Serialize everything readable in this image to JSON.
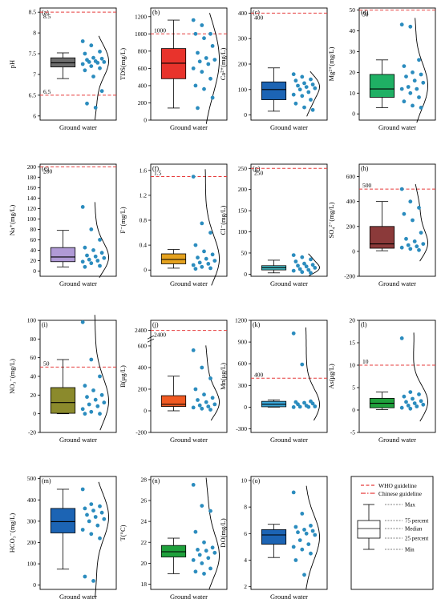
{
  "legend": {
    "who": "WHO guideline",
    "chinese": "Chinese guideline",
    "max": "Max",
    "p75": "75 percent",
    "median": "Median",
    "p25": "25 percent",
    "min": "Min"
  },
  "chart_data": [
    {
      "type": "box",
      "panel": "(a)",
      "ylabel": "pH",
      "xlabel": "Ground water",
      "color": "#6d6d6d",
      "ylim": [
        5.9,
        8.6
      ],
      "yticks": [
        6.0,
        6.5,
        7.0,
        7.5,
        8.0,
        8.5
      ],
      "box": {
        "min": 6.9,
        "q1": 7.18,
        "median": 7.28,
        "q3": 7.4,
        "max": 7.52
      },
      "guidelines": [
        {
          "value": 8.5,
          "label": "8.5",
          "label_pos": "below"
        },
        {
          "value": 6.5,
          "label": "6.5",
          "label_pos": "above"
        }
      ],
      "points": [
        7.8,
        7.7,
        7.55,
        7.5,
        7.4,
        7.38,
        7.35,
        7.32,
        7.3,
        7.3,
        7.28,
        7.25,
        7.2,
        7.15,
        7.1,
        6.95,
        6.6,
        6.3,
        6.2
      ]
    },
    {
      "type": "box",
      "panel": "(b)",
      "ylabel": "TDS(mg/L)",
      "xlabel": "Ground water",
      "color": "#e8332c",
      "ylim": [
        0,
        1300
      ],
      "yticks": [
        0,
        200,
        400,
        600,
        800,
        1000,
        1200
      ],
      "box": {
        "min": 140,
        "q1": 480,
        "median": 660,
        "q3": 830,
        "max": 1160
      },
      "guidelines": [
        {
          "value": 1000,
          "label": "1000",
          "label_pos": "above"
        }
      ],
      "points": [
        1160,
        1100,
        1000,
        1000,
        950,
        860,
        780,
        720,
        700,
        680,
        650,
        600,
        560,
        480,
        400,
        360,
        260,
        140
      ]
    },
    {
      "type": "box",
      "panel": "(c)",
      "ylabel": "Ca²⁺(mg/L)",
      "xlabel": "Ground water",
      "color": "#1c64b4",
      "ylim": [
        -20,
        420
      ],
      "yticks": [
        0,
        100,
        200,
        300,
        400
      ],
      "box": {
        "min": 15,
        "q1": 60,
        "median": 100,
        "q3": 130,
        "max": 185
      },
      "guidelines": [
        {
          "value": 400,
          "label": "400",
          "label_pos": "below"
        }
      ],
      "points": [
        160,
        150,
        140,
        135,
        125,
        120,
        115,
        110,
        105,
        100,
        90,
        80,
        75,
        60,
        45,
        30,
        20
      ]
    },
    {
      "type": "box",
      "panel": "(d)",
      "ylabel": "Mg²⁺(mg/L)",
      "xlabel": "Ground water",
      "color": "#1fb064",
      "ylim": [
        -3,
        51
      ],
      "yticks": [
        0,
        10,
        20,
        30,
        40,
        50
      ],
      "box": {
        "min": 3,
        "q1": 8,
        "median": 12,
        "q3": 19,
        "max": 26
      },
      "guidelines": [
        {
          "value": 50,
          "label": "50",
          "label_pos": "below"
        }
      ],
      "points": [
        43,
        42,
        26,
        23,
        20,
        19,
        18,
        16,
        15,
        13,
        12,
        12,
        10,
        8,
        6,
        4,
        3
      ]
    },
    {
      "type": "box",
      "panel": "(e)",
      "ylabel": "Na⁺(mg/L)",
      "xlabel": "Ground water",
      "color": "#b09ad6",
      "ylim": [
        -10,
        205
      ],
      "yticks": [
        0,
        20,
        40,
        60,
        80,
        100,
        120,
        140,
        160,
        180,
        200
      ],
      "box": {
        "min": 8,
        "q1": 18,
        "median": 27,
        "q3": 45,
        "max": 78
      },
      "guidelines": [
        {
          "value": 200,
          "label": "200",
          "label_pos": "below"
        }
      ],
      "points": [
        123,
        80,
        60,
        45,
        40,
        35,
        30,
        28,
        25,
        22,
        20,
        18,
        15,
        10,
        8
      ]
    },
    {
      "type": "box",
      "panel": "(f)",
      "ylabel": "F⁻(mg/L)",
      "xlabel": "Ground water",
      "color": "#e5a21e",
      "ylim": [
        -0.1,
        1.7
      ],
      "yticks": [
        0.0,
        0.4,
        0.8,
        1.2,
        1.6
      ],
      "box": {
        "min": 0.03,
        "q1": 0.1,
        "median": 0.17,
        "q3": 0.26,
        "max": 0.33
      },
      "guidelines": [
        {
          "value": 1.5,
          "label": "1.5",
          "label_pos": "above"
        }
      ],
      "points": [
        1.5,
        0.75,
        0.6,
        0.4,
        0.3,
        0.25,
        0.2,
        0.18,
        0.15,
        0.12,
        0.1,
        0.08,
        0.05,
        0.03,
        0.02
      ]
    },
    {
      "type": "box",
      "panel": "(g)",
      "ylabel": "Cl⁻(mg/L)",
      "xlabel": "Ground water",
      "color": "#48c0c8",
      "ylim": [
        -5,
        260
      ],
      "yticks": [
        0,
        50,
        100,
        150,
        200,
        250
      ],
      "box": {
        "min": 3,
        "q1": 10,
        "median": 15,
        "q3": 20,
        "max": 33
      },
      "guidelines": [
        {
          "value": 250,
          "label": "250",
          "label_pos": "below"
        }
      ],
      "points": [
        45,
        40,
        35,
        30,
        25,
        22,
        20,
        18,
        15,
        12,
        10,
        8,
        5,
        3
      ]
    },
    {
      "type": "box",
      "panel": "(h)",
      "ylabel": "SO₄²⁻(mg/L)",
      "xlabel": "Ground water",
      "color": "#8b3a3a",
      "ylim": [
        -200,
        700
      ],
      "yticks": [
        -200,
        0,
        200,
        400,
        600
      ],
      "box": {
        "min": 5,
        "q1": 25,
        "median": 60,
        "q3": 200,
        "max": 400
      },
      "guidelines": [
        {
          "value": 500,
          "label": "500",
          "label_pos": "above"
        }
      ],
      "points": [
        500,
        400,
        350,
        300,
        250,
        150,
        100,
        80,
        60,
        50,
        40,
        30,
        20,
        10
      ]
    },
    {
      "type": "box",
      "panel": "(i)",
      "ylabel": "NO₃⁻(mg/L)",
      "xlabel": "Ground water",
      "color": "#8b8a2c",
      "ylim": [
        -20,
        100
      ],
      "yticks": [
        -20,
        0,
        20,
        40,
        60,
        80,
        100
      ],
      "box": {
        "min": 0,
        "q1": 0.5,
        "median": 12,
        "q3": 28,
        "max": 58
      },
      "guidelines": [
        {
          "value": 50,
          "label": "50",
          "label_pos": "above"
        }
      ],
      "points": [
        98,
        58,
        40,
        30,
        25,
        20,
        18,
        15,
        12,
        10,
        8,
        5,
        2,
        0,
        0
      ]
    },
    {
      "type": "box",
      "panel": "(j)",
      "ylabel": "B(μg/L)",
      "xlabel": "Ground water",
      "color": "#f15a22",
      "ylim": [
        -200,
        2450
      ],
      "yticks": [
        -200,
        0,
        200,
        400,
        600,
        2400
      ],
      "ybreak": [
        650,
        2350
      ],
      "box": {
        "min": 0,
        "q1": 40,
        "median": 60,
        "q3": 140,
        "max": 320
      },
      "guidelines": [
        {
          "value": 2400,
          "label": "2400",
          "label_pos": "below"
        }
      ],
      "points": [
        560,
        400,
        300,
        200,
        150,
        120,
        100,
        80,
        60,
        50,
        40,
        30,
        20,
        10
      ]
    },
    {
      "type": "box",
      "panel": "(k)",
      "ylabel": "Mn(μg/L)",
      "xlabel": "Ground water",
      "color": "#3aa6d8",
      "ylim": [
        -350,
        1200
      ],
      "yticks": [
        -300,
        0,
        300,
        600,
        900,
        1200
      ],
      "box": {
        "min": 0,
        "q1": 5,
        "median": 40,
        "q3": 80,
        "max": 100
      },
      "guidelines": [
        {
          "value": 400,
          "label": "400",
          "label_pos": "above"
        }
      ],
      "points": [
        1020,
        590,
        80,
        70,
        60,
        50,
        40,
        20,
        10,
        5,
        2,
        0
      ]
    },
    {
      "type": "box",
      "panel": "(l)",
      "ylabel": "As(μg/L)",
      "xlabel": "Ground water",
      "color": "#1fa13c",
      "ylim": [
        -5,
        20
      ],
      "yticks": [
        -5,
        0,
        5,
        10,
        15,
        20
      ],
      "box": {
        "min": 0.1,
        "q1": 0.5,
        "median": 1.5,
        "q3": 2.6,
        "max": 4
      },
      "guidelines": [
        {
          "value": 10,
          "label": "10",
          "label_pos": "above"
        }
      ],
      "points": [
        16,
        4,
        3.5,
        3,
        2.5,
        2,
        1.8,
        1.5,
        1.2,
        1,
        0.8,
        0.5,
        0.3
      ]
    },
    {
      "type": "box",
      "panel": "(m)",
      "ylabel": "HCO₃⁻(mg/L)",
      "xlabel": "Ground water",
      "color": "#1c64b4",
      "ylim": [
        -20,
        510
      ],
      "yticks": [
        0,
        100,
        200,
        300,
        400,
        500
      ],
      "box": {
        "min": 75,
        "q1": 245,
        "median": 298,
        "q3": 360,
        "max": 450
      },
      "guidelines": [],
      "points": [
        450,
        380,
        370,
        360,
        350,
        340,
        330,
        320,
        310,
        300,
        280,
        260,
        240,
        220,
        40,
        20
      ]
    },
    {
      "type": "box",
      "panel": "(n)",
      "ylabel": "T(°C)",
      "xlabel": "Ground water",
      "color": "#1fa13c",
      "ylim": [
        17.5,
        28.3
      ],
      "yticks": [
        18,
        20,
        22,
        24,
        26,
        28
      ],
      "box": {
        "min": 19,
        "q1": 20.6,
        "median": 21.1,
        "q3": 21.7,
        "max": 22.4
      },
      "guidelines": [],
      "points": [
        27.5,
        25.5,
        25,
        23,
        22,
        21.5,
        21.3,
        21.2,
        21,
        20.8,
        20.5,
        20.3,
        20,
        19.5,
        19.2,
        19
      ]
    },
    {
      "type": "box",
      "panel": "(o)",
      "ylabel": "DO(mg/L)",
      "xlabel": "Ground water",
      "color": "#1c64b4",
      "ylim": [
        1.8,
        10.3
      ],
      "yticks": [
        2,
        4,
        6,
        8,
        10
      ],
      "box": {
        "min": 4.2,
        "q1": 5.2,
        "median": 5.9,
        "q3": 6.3,
        "max": 6.7
      },
      "guidelines": [],
      "points": [
        9.1,
        7.5,
        6.6,
        6.5,
        6.3,
        6.2,
        6.1,
        6,
        5.9,
        5.5,
        5.2,
        5,
        4.8,
        4.5,
        4,
        2.9
      ]
    }
  ]
}
